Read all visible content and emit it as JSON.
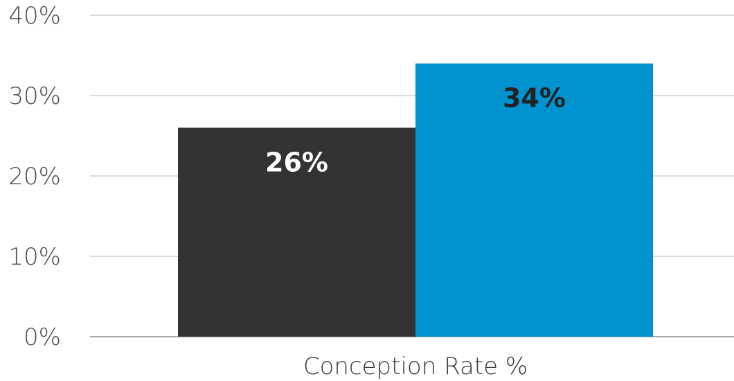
{
  "chart_data": {
    "type": "bar",
    "title": "",
    "xlabel": "",
    "ylabel": "",
    "categories": [
      "Conception Rate %"
    ],
    "series": [
      {
        "values": [
          26
        ],
        "color": "#333333",
        "label_color": "#ffffff",
        "data_label": "26%"
      },
      {
        "values": [
          34
        ],
        "color": "#0093d0",
        "label_color": "#222222",
        "data_label": "34%"
      }
    ],
    "ylim": [
      0,
      40
    ],
    "y_ticks": [
      0,
      10,
      20,
      30,
      40
    ],
    "y_tick_labels": [
      "0%",
      "10%",
      "20%",
      "30%",
      "40%"
    ],
    "grid": true,
    "legend": "none"
  }
}
